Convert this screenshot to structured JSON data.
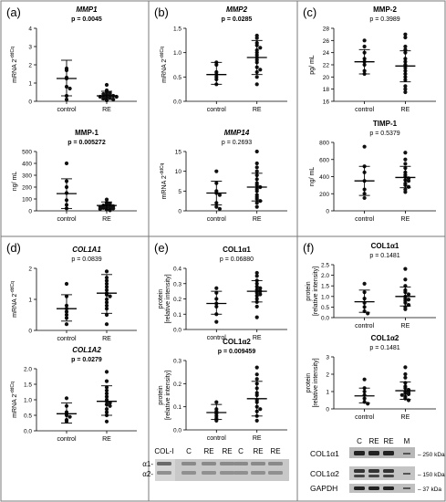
{
  "panels": [
    {
      "letter": "(a)"
    },
    {
      "letter": "(b)"
    },
    {
      "letter": "(c)"
    },
    {
      "letter": "(d)"
    },
    {
      "letter": "(e)"
    },
    {
      "letter": "(f)"
    }
  ],
  "chart_data": [
    {
      "type": "scatter",
      "panel": "a",
      "title": "MMP1",
      "title_style": "bold-italic",
      "pvalue": "p = 0.0045",
      "p_bold": true,
      "ylabel": "mRNA 2^-ddCq",
      "ylim": [
        0,
        4
      ],
      "yticks": [
        0,
        1,
        2,
        3,
        4
      ],
      "categories": [
        "control",
        "RE"
      ],
      "series": [
        {
          "values": [
            1.8,
            1.7,
            1.3,
            1.25,
            0.8,
            0.7,
            0.3,
            0.1
          ],
          "mean": 1.25,
          "sd_low": 0.3,
          "sd_high": 2.25
        },
        {
          "values": [
            0.9,
            0.6,
            0.5,
            0.45,
            0.4,
            0.35,
            0.35,
            0.3,
            0.3,
            0.25,
            0.25,
            0.2,
            0.2,
            0.15,
            0.1,
            0.05
          ],
          "mean": 0.3,
          "sd_low": 0.1,
          "sd_high": 0.55
        }
      ]
    },
    {
      "type": "scatter",
      "panel": "a2",
      "title": "MMP-1",
      "title_style": "bold",
      "pvalue": "p = 0.005272",
      "p_bold": true,
      "ylabel": "ng/ mL",
      "ylim": [
        0,
        500
      ],
      "yticks": [
        0,
        100,
        200,
        300,
        400,
        500
      ],
      "categories": [
        "control",
        "RE"
      ],
      "series": [
        {
          "values": [
            400,
            250,
            200,
            150,
            90,
            50,
            20
          ],
          "mean": 145,
          "sd_low": 20,
          "sd_high": 270
        },
        {
          "values": [
            95,
            70,
            60,
            55,
            50,
            45,
            40,
            35,
            30,
            30,
            25,
            20,
            15,
            10,
            5
          ],
          "mean": 45,
          "sd_low": 15,
          "sd_high": 75
        }
      ]
    },
    {
      "type": "scatter",
      "panel": "b",
      "title": "MMP2",
      "title_style": "bold-italic",
      "pvalue": "p = 0.0285",
      "p_bold": true,
      "ylabel": "mRNA 2^-ddCq",
      "ylim": [
        0,
        1.5
      ],
      "yticks": [
        0,
        0.5,
        1.0,
        1.5
      ],
      "categories": [
        "control",
        "RE"
      ],
      "series": [
        {
          "values": [
            0.8,
            0.75,
            0.6,
            0.55,
            0.5,
            0.45,
            0.35
          ],
          "mean": 0.55,
          "sd_low": 0.35,
          "sd_high": 0.8
        },
        {
          "values": [
            1.35,
            1.3,
            1.2,
            1.15,
            1.1,
            1.05,
            1.0,
            0.95,
            0.9,
            0.85,
            0.8,
            0.7,
            0.65,
            0.6,
            0.5,
            0.35
          ],
          "mean": 0.9,
          "sd_low": 0.55,
          "sd_high": 1.25
        }
      ]
    },
    {
      "type": "scatter",
      "panel": "b2",
      "title": "MMP14",
      "title_style": "bold-italic",
      "pvalue": "p = 0.2693",
      "p_bold": false,
      "ylabel": "mRNA 2^-ddCq",
      "ylim": [
        0,
        15
      ],
      "yticks": [
        0,
        5,
        10,
        15
      ],
      "categories": [
        "control",
        "RE"
      ],
      "series": [
        {
          "values": [
            10,
            7,
            5,
            4.5,
            4,
            2,
            1,
            0.5
          ],
          "mean": 4.5,
          "sd_low": 1.5,
          "sd_high": 7.5
        },
        {
          "values": [
            15,
            12,
            11,
            10,
            9,
            8,
            7,
            6.5,
            6,
            5.5,
            5,
            4,
            3.5,
            3,
            2.5,
            2,
            1
          ],
          "mean": 6,
          "sd_low": 2.5,
          "sd_high": 9.5
        }
      ]
    },
    {
      "type": "scatter",
      "panel": "c",
      "title": "MMP-2",
      "title_style": "bold",
      "pvalue": "p = 0.3989",
      "p_bold": false,
      "ylabel": "pg/ mL",
      "ylim": [
        16,
        28
      ],
      "yticks": [
        16,
        18,
        20,
        22,
        24,
        26,
        28
      ],
      "categories": [
        "control",
        "RE"
      ],
      "series": [
        {
          "values": [
            26,
            25,
            24,
            23,
            22.5,
            22,
            21,
            20.5
          ],
          "mean": 22.5,
          "sd_low": 20.5,
          "sd_high": 24.5
        },
        {
          "values": [
            27,
            26.5,
            25,
            24.5,
            24,
            23,
            22.5,
            22,
            21.5,
            21,
            20.5,
            20,
            19.5,
            18.5,
            18,
            17.5
          ],
          "mean": 21.8,
          "sd_low": 19.2,
          "sd_high": 24.3
        }
      ]
    },
    {
      "type": "scatter",
      "panel": "c2",
      "title": "TIMP-1",
      "title_style": "bold",
      "pvalue": "p = 0.5379",
      "p_bold": false,
      "ylabel": "ng/ mL",
      "ylim": [
        0,
        800
      ],
      "yticks": [
        0,
        200,
        400,
        600,
        800
      ],
      "categories": [
        "control",
        "RE"
      ],
      "series": [
        {
          "values": [
            750,
            520,
            450,
            350,
            250,
            200,
            150
          ],
          "mean": 350,
          "sd_low": 180,
          "sd_high": 520
        },
        {
          "values": [
            680,
            600,
            550,
            500,
            450,
            420,
            400,
            380,
            360,
            350,
            320,
            300,
            280,
            250,
            220
          ],
          "mean": 390,
          "sd_low": 270,
          "sd_high": 520
        }
      ]
    },
    {
      "type": "scatter",
      "panel": "d",
      "title": "COL1A1",
      "title_style": "bold-italic",
      "pvalue": "p = 0.0839",
      "p_bold": false,
      "ylabel": "mRNA 2^-ddCq",
      "ylim": [
        0,
        2
      ],
      "yticks": [
        0,
        1,
        2
      ],
      "categories": [
        "control",
        "RE"
      ],
      "series": [
        {
          "values": [
            1.5,
            1.1,
            0.8,
            0.7,
            0.6,
            0.5,
            0.4,
            0.2
          ],
          "mean": 0.7,
          "sd_low": 0.3,
          "sd_high": 1.15
        },
        {
          "values": [
            1.9,
            1.7,
            1.6,
            1.5,
            1.4,
            1.3,
            1.2,
            1.15,
            1.1,
            1.0,
            0.9,
            0.8,
            0.7,
            0.5,
            0.2
          ],
          "mean": 1.2,
          "sd_low": 0.55,
          "sd_high": 1.8
        }
      ]
    },
    {
      "type": "scatter",
      "panel": "d2",
      "title": "COL1A2",
      "title_style": "bold-italic",
      "pvalue": "p = 0.0279",
      "p_bold": true,
      "ylabel": "mRNA 2^-ddCq",
      "ylim": [
        0,
        2
      ],
      "yticks": [
        0,
        0.5,
        1.0,
        1.5,
        2.0
      ],
      "categories": [
        "control",
        "RE"
      ],
      "series": [
        {
          "values": [
            1.05,
            0.8,
            0.6,
            0.5,
            0.45,
            0.35,
            0.3
          ],
          "mean": 0.55,
          "sd_low": 0.25,
          "sd_high": 0.9
        },
        {
          "values": [
            1.9,
            1.6,
            1.4,
            1.3,
            1.2,
            1.1,
            1.0,
            0.95,
            0.9,
            0.85,
            0.8,
            0.7,
            0.6,
            0.5,
            0.3
          ],
          "mean": 0.95,
          "sd_low": 0.5,
          "sd_high": 1.45
        }
      ]
    },
    {
      "type": "scatter",
      "panel": "e",
      "title": "COL1α1",
      "title_style": "bold",
      "pvalue": "p = 0.06880",
      "p_bold": false,
      "ylabel": "protein [relative intensity]",
      "ylim": [
        0,
        0.4
      ],
      "yticks": [
        0.0,
        0.1,
        0.2,
        0.3,
        0.4
      ],
      "categories": [
        "control",
        "RE"
      ],
      "series": [
        {
          "values": [
            0.27,
            0.24,
            0.2,
            0.17,
            0.15,
            0.1,
            0.05
          ],
          "mean": 0.17,
          "sd_low": 0.1,
          "sd_high": 0.25
        },
        {
          "values": [
            0.37,
            0.35,
            0.32,
            0.3,
            0.28,
            0.27,
            0.26,
            0.25,
            0.24,
            0.23,
            0.22,
            0.2,
            0.18,
            0.15,
            0.08
          ],
          "mean": 0.25,
          "sd_low": 0.18,
          "sd_high": 0.32
        }
      ]
    },
    {
      "type": "scatter",
      "panel": "e2",
      "title": "COL1α2",
      "title_style": "bold",
      "pvalue": "p = 0.009459",
      "p_bold": true,
      "ylabel": "protein [relative intensity]",
      "ylim": [
        0,
        0.3
      ],
      "yticks": [
        0.0,
        0.1,
        0.2,
        0.3
      ],
      "categories": [
        "control",
        "RE"
      ],
      "series": [
        {
          "values": [
            0.12,
            0.09,
            0.08,
            0.07,
            0.06,
            0.05,
            0.04
          ],
          "mean": 0.075,
          "sd_low": 0.045,
          "sd_high": 0.11
        },
        {
          "values": [
            0.27,
            0.24,
            0.22,
            0.2,
            0.18,
            0.16,
            0.15,
            0.13,
            0.12,
            0.1,
            0.09,
            0.08,
            0.06,
            0.04
          ],
          "mean": 0.135,
          "sd_low": 0.06,
          "sd_high": 0.21
        }
      ]
    },
    {
      "type": "scatter",
      "panel": "f",
      "title": "COL1α1",
      "title_style": "bold",
      "pvalue": "p = 0.1481",
      "p_bold": false,
      "ylabel": "protein [relative intensity]",
      "ylim": [
        0,
        2.5
      ],
      "yticks": [
        0.0,
        0.5,
        1.0,
        1.5,
        2.0,
        2.5
      ],
      "categories": [
        "control",
        "RE"
      ],
      "series": [
        {
          "values": [
            1.6,
            1.2,
            0.9,
            0.7,
            0.5,
            0.3,
            0.2
          ],
          "mean": 0.75,
          "sd_low": 0.25,
          "sd_high": 1.3
        },
        {
          "values": [
            2.3,
            1.8,
            1.5,
            1.3,
            1.2,
            1.1,
            1.0,
            0.9,
            0.85,
            0.8,
            0.7,
            0.6,
            0.5,
            0.4
          ],
          "mean": 1.0,
          "sd_low": 0.55,
          "sd_high": 1.45
        }
      ]
    },
    {
      "type": "scatter",
      "panel": "f2",
      "title": "COL1α2",
      "title_style": "bold",
      "pvalue": "p = 0.1481",
      "p_bold": false,
      "ylabel": "protein [relative intensity]",
      "ylim": [
        0,
        3
      ],
      "yticks": [
        0,
        1,
        2,
        3
      ],
      "categories": [
        "control",
        "RE"
      ],
      "series": [
        {
          "values": [
            1.7,
            1.2,
            1.0,
            0.8,
            0.6,
            0.4,
            0.3
          ],
          "mean": 0.75,
          "sd_low": 0.35,
          "sd_high": 1.2
        },
        {
          "values": [
            2.4,
            2.0,
            1.8,
            1.5,
            1.3,
            1.2,
            1.1,
            1.0,
            0.95,
            0.9,
            0.85,
            0.8,
            0.7,
            0.6,
            0.5
          ],
          "mean": 1.05,
          "sd_low": 0.55,
          "sd_high": 1.55
        }
      ]
    }
  ],
  "blot_e": {
    "lane_labels": [
      "COL-I",
      "C",
      "RE",
      "RE",
      "C",
      "RE",
      "RE"
    ],
    "band_labels": [
      "α1-",
      "α2-"
    ]
  },
  "blot_f": {
    "lane_labels": [
      "C",
      "RE",
      "RE",
      "M"
    ],
    "row_labels": [
      "COL1α1",
      "COL1α2",
      "GAPDH"
    ],
    "marker_labels": [
      "250 kDa",
      "150 kDa",
      "37 kDa"
    ]
  }
}
